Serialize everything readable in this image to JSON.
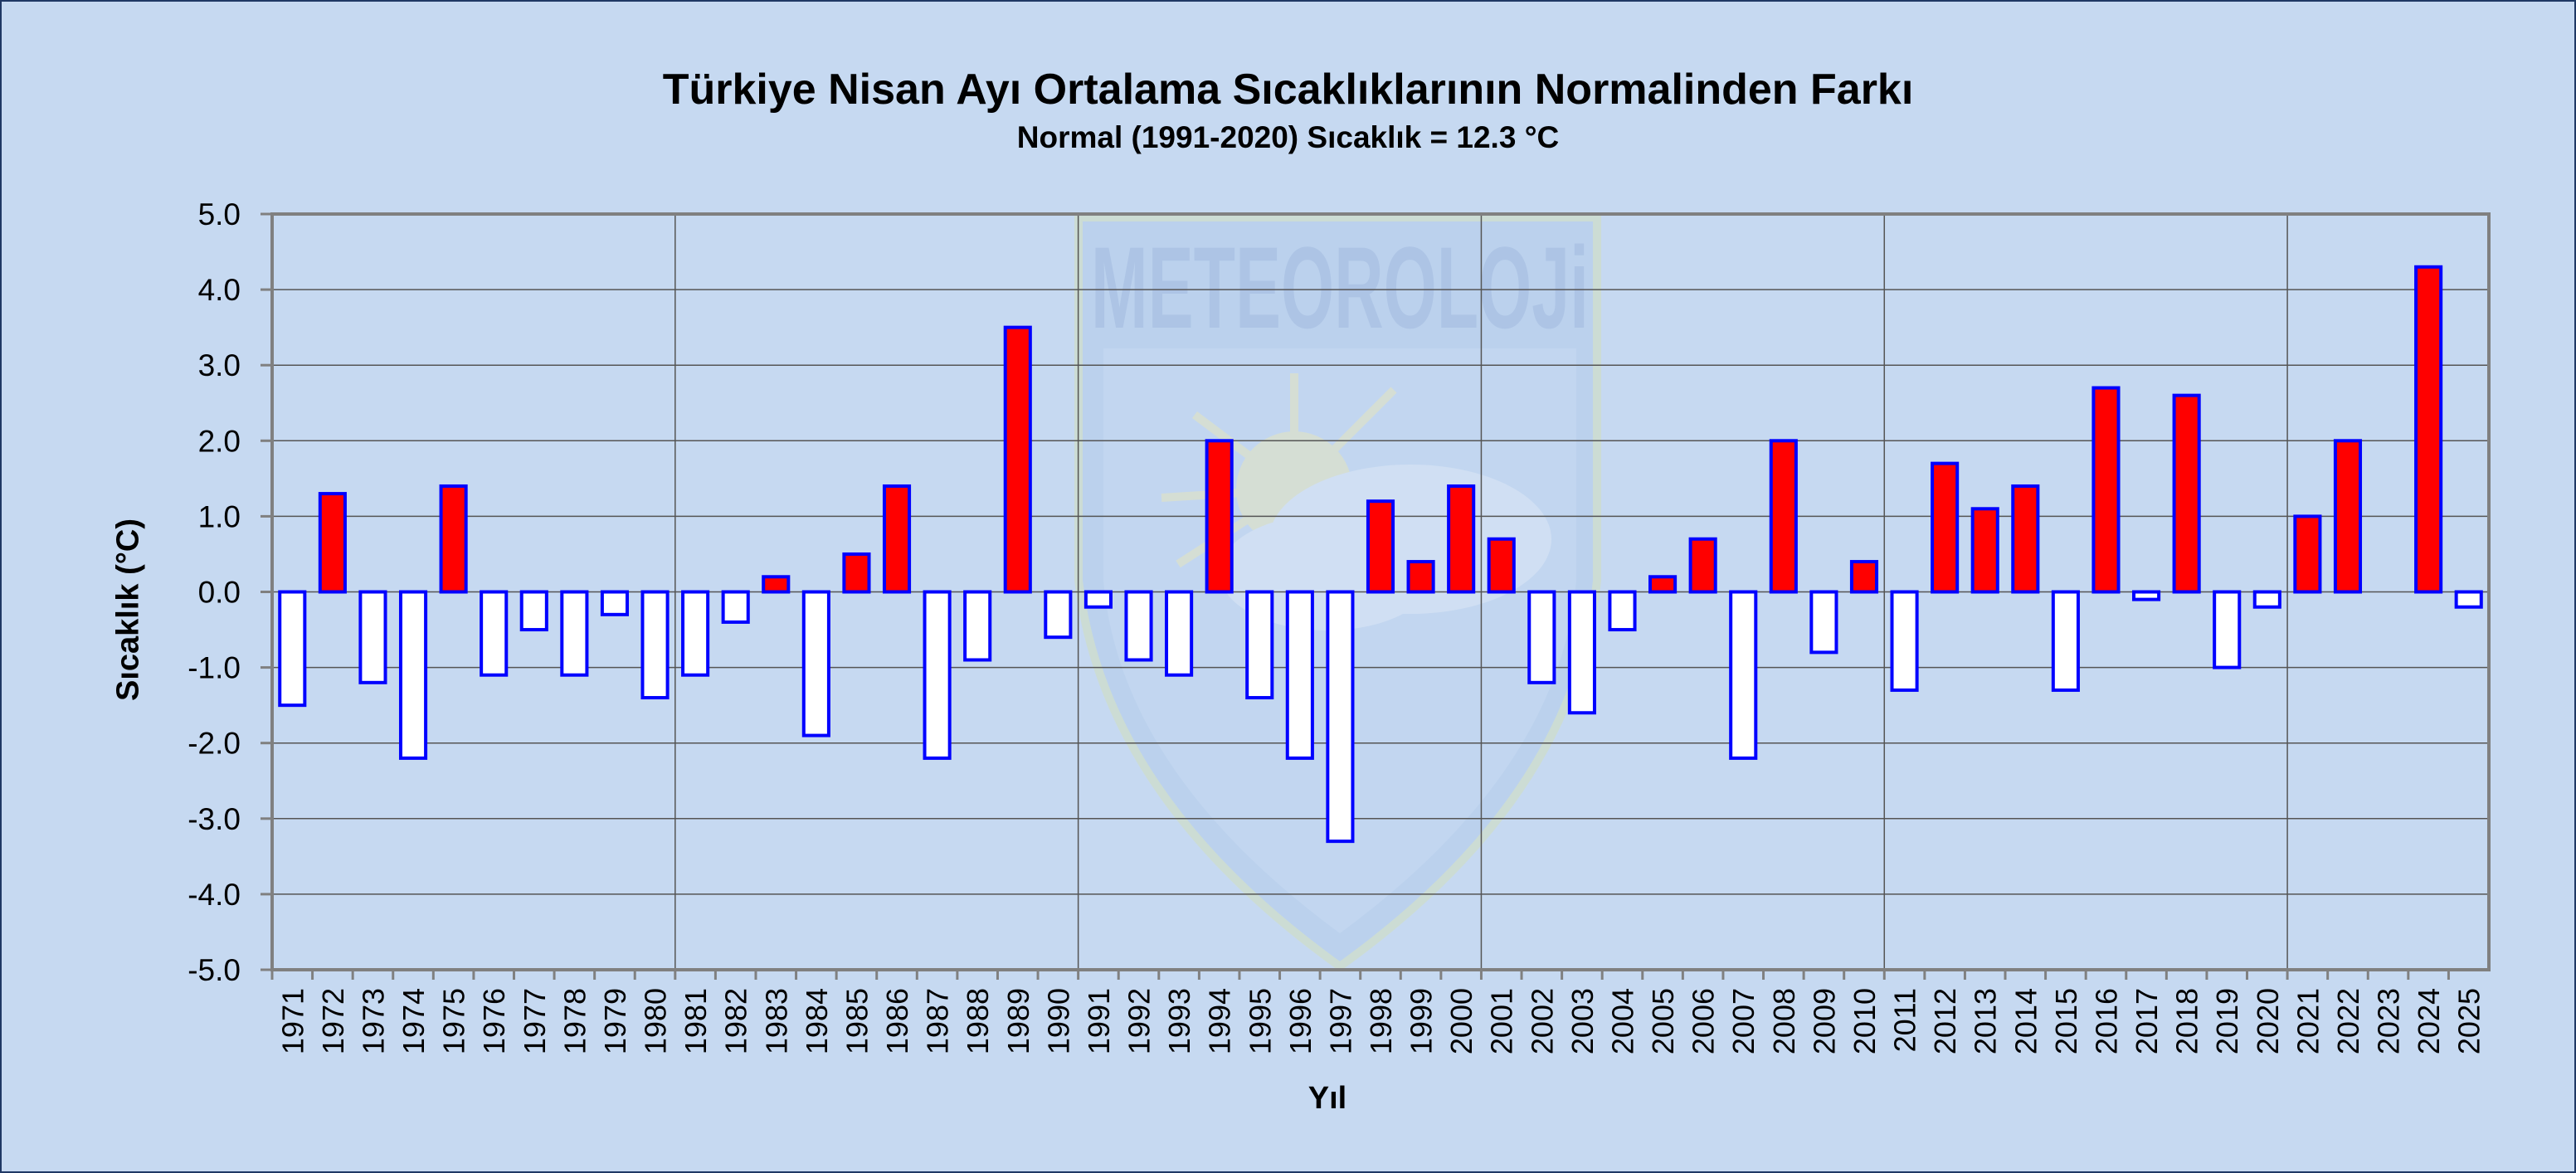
{
  "watermark": {
    "text": "METEOROLOJi",
    "icon": "meteoroloji-shield-logo"
  },
  "chart_data": {
    "type": "bar",
    "title": "Türkiye Nisan Ayı Ortalama Sıcaklıklarının Normalinden  Farkı",
    "subtitle": "Normal (1991-2020) Sıcaklık = 12.3 °C",
    "xlabel": "Yıl",
    "ylabel": "Sıcaklık (°C)",
    "ylim": [
      -5.0,
      5.0
    ],
    "yticks": [
      "5.0",
      "4.0",
      "3.0",
      "2.0",
      "1.0",
      "0.0",
      "-1.0",
      "-2.0",
      "-3.0",
      "-4.0",
      "-5.0"
    ],
    "grid": true,
    "colors": {
      "positive": "#ff0000",
      "negative": "#ffffff",
      "bar_border": "#0000ff",
      "plot_border": "#808080",
      "grid": "#555555"
    },
    "categories": [
      "1971",
      "1972",
      "1973",
      "1974",
      "1975",
      "1976",
      "1977",
      "1978",
      "1979",
      "1980",
      "1981",
      "1982",
      "1983",
      "1984",
      "1985",
      "1986",
      "1987",
      "1988",
      "1989",
      "1990",
      "1991",
      "1992",
      "1993",
      "1994",
      "1995",
      "1996",
      "1997",
      "1998",
      "1999",
      "2000",
      "2001",
      "2002",
      "2003",
      "2004",
      "2005",
      "2006",
      "2007",
      "2008",
      "2009",
      "2010",
      "2011",
      "2012",
      "2013",
      "2014",
      "2015",
      "2016",
      "2017",
      "2018",
      "2019",
      "2020",
      "2021",
      "2022",
      "2023",
      "2024",
      "2025"
    ],
    "values": [
      -1.5,
      1.3,
      -1.2,
      -2.2,
      1.4,
      -1.1,
      -0.5,
      -1.1,
      -0.3,
      -1.4,
      -1.1,
      -0.4,
      0.2,
      -1.9,
      0.5,
      1.4,
      -2.2,
      -0.9,
      3.5,
      -0.6,
      -0.2,
      -0.9,
      -1.1,
      2.0,
      -1.4,
      -2.2,
      -3.3,
      1.2,
      0.4,
      1.4,
      0.7,
      -1.2,
      -1.6,
      -0.5,
      0.2,
      0.7,
      -2.2,
      2.0,
      -0.8,
      0.4,
      -1.3,
      1.7,
      1.1,
      1.4,
      -1.3,
      2.7,
      -0.1,
      2.6,
      -1.0,
      -0.2,
      1.0,
      2.0,
      null,
      4.3,
      -0.2
    ]
  }
}
